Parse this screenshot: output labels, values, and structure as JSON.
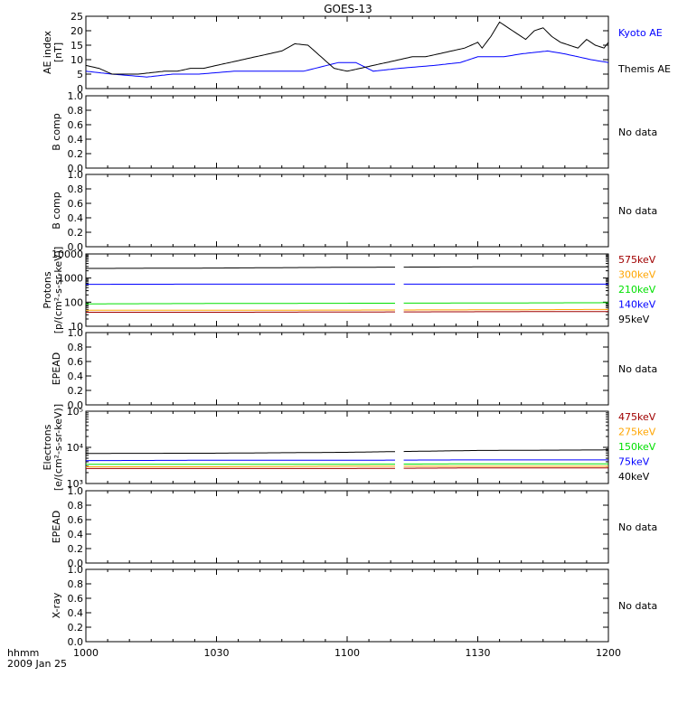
{
  "title": "GOES-13",
  "time_axis": {
    "unit_label": "hhmm",
    "date_label": "2009 Jan 25",
    "tick_labels": [
      "1000",
      "1030",
      "1100",
      "1130",
      "1200"
    ],
    "range_minutes": [
      0,
      120
    ]
  },
  "colors": {
    "black": "#000000",
    "blue": "#0000ff",
    "green": "#00e000",
    "orange": "#ffa500",
    "darkred": "#a00000",
    "red": "#ff0000"
  },
  "chart_data": [
    {
      "type": "line",
      "panel": "ae",
      "ylabel": [
        "AE index",
        "[nT]"
      ],
      "ylim": [
        0,
        25
      ],
      "yticks": [
        0,
        5,
        10,
        15,
        20,
        25
      ],
      "ytick_labels": [
        "0",
        "5",
        "10",
        "15",
        "20",
        "25"
      ],
      "series": [
        {
          "name": "Kyoto AE",
          "color": "#0000ff",
          "x": [
            0,
            3,
            6,
            10,
            14,
            20,
            26,
            34,
            42,
            50,
            58,
            62,
            66,
            72,
            80,
            86,
            90,
            96,
            100,
            106,
            110,
            116,
            120
          ],
          "y": [
            6,
            5.5,
            5,
            4.5,
            4,
            5,
            5,
            6,
            6,
            6,
            9,
            9,
            6,
            7,
            8,
            9,
            11,
            11,
            12,
            13,
            12,
            10,
            9
          ]
        },
        {
          "name": "Themis AE",
          "color": "#000000",
          "x": [
            0,
            3,
            6,
            9,
            12,
            15,
            18,
            21,
            24,
            27,
            30,
            33,
            36,
            39,
            42,
            45,
            48,
            51,
            54,
            57,
            60,
            63,
            66,
            69,
            72,
            75,
            78,
            81,
            84,
            87,
            90,
            91,
            93,
            95,
            97,
            99,
            101,
            103,
            105,
            107,
            109,
            111,
            113,
            115,
            117,
            119,
            120
          ],
          "y": [
            8,
            7,
            5,
            5,
            5,
            5.5,
            6,
            6,
            7,
            7,
            8,
            9,
            10,
            11,
            12,
            13,
            15.5,
            15,
            11,
            7,
            6,
            7,
            8,
            9,
            10,
            11,
            11,
            12,
            13,
            14,
            16,
            14,
            18,
            23,
            21,
            19,
            17,
            20,
            21,
            18,
            16,
            15,
            14,
            17,
            15,
            14,
            16
          ]
        }
      ]
    },
    {
      "type": "line",
      "panel": "b1",
      "ylabel": [
        "B comp"
      ],
      "ylim": [
        0,
        1
      ],
      "yticks": [
        0,
        0.2,
        0.4,
        0.6,
        0.8,
        1.0
      ],
      "ytick_labels": [
        "0.0",
        "0.2",
        "0.4",
        "0.6",
        "0.8",
        "1.0"
      ],
      "no_data": "No data",
      "series": []
    },
    {
      "type": "line",
      "panel": "b2",
      "ylabel": [
        "B comp"
      ],
      "ylim": [
        0,
        1
      ],
      "yticks": [
        0,
        0.2,
        0.4,
        0.6,
        0.8,
        1.0
      ],
      "ytick_labels": [
        "0.0",
        "0.2",
        "0.4",
        "0.6",
        "0.8",
        "1.0"
      ],
      "no_data": "No data",
      "series": []
    },
    {
      "type": "line",
      "panel": "protons",
      "log": true,
      "ylabel": [
        "Protons",
        "[p/(cm²-s-sr-keV)]"
      ],
      "ylim": [
        10,
        10000
      ],
      "yticks": [
        10,
        100,
        1000,
        10000
      ],
      "ytick_labels": [
        "10",
        "100",
        "1000",
        "10000"
      ],
      "gap": [
        71,
        73
      ],
      "series": [
        {
          "name": "575keV",
          "color": "#a00000",
          "x": [
            0,
            30,
            60,
            90,
            120
          ],
          "y": [
            38,
            38,
            39,
            40,
            41
          ]
        },
        {
          "name": "300keV",
          "color": "#ffa500",
          "x": [
            0,
            30,
            60,
            90,
            120
          ],
          "y": [
            46,
            46,
            47,
            48,
            50
          ]
        },
        {
          "name": "210keV",
          "color": "#00e000",
          "x": [
            0,
            30,
            60,
            90,
            120
          ],
          "y": [
            85,
            88,
            90,
            92,
            95
          ]
        },
        {
          "name": "140keV",
          "color": "#0000ff",
          "x": [
            0,
            30,
            60,
            90,
            120
          ],
          "y": [
            550,
            560,
            560,
            560,
            560
          ]
        },
        {
          "name": "95keV",
          "color": "#000000",
          "x": [
            0,
            30,
            60,
            90,
            120
          ],
          "y": [
            2500,
            2600,
            2800,
            2900,
            2900
          ]
        }
      ]
    },
    {
      "type": "line",
      "panel": "epead1",
      "ylabel": [
        "EPEAD"
      ],
      "ylim": [
        0,
        1
      ],
      "yticks": [
        0,
        0.2,
        0.4,
        0.6,
        0.8,
        1.0
      ],
      "ytick_labels": [
        "0.0",
        "0.2",
        "0.4",
        "0.6",
        "0.8",
        "1.0"
      ],
      "no_data": "No data",
      "series": []
    },
    {
      "type": "line",
      "panel": "electrons",
      "log": true,
      "ylabel": [
        "Electrons",
        "[e/(cm²-s-sr-keV)]"
      ],
      "ylim": [
        1000,
        100000
      ],
      "yticks": [
        1000,
        10000,
        100000
      ],
      "ytick_labels": [
        "10³",
        "10⁴",
        "10⁵"
      ],
      "gap": [
        71,
        73
      ],
      "series": [
        {
          "name": "475keV",
          "color": "#a00000",
          "x": [
            0,
            30,
            60,
            90,
            120
          ],
          "y": [
            2600,
            2600,
            2600,
            2700,
            2700
          ]
        },
        {
          "name": "275keV",
          "color": "#ffa500",
          "x": [
            0,
            30,
            60,
            90,
            120
          ],
          "y": [
            2900,
            2900,
            3000,
            3000,
            3000
          ]
        },
        {
          "name": "150keV",
          "color": "#00e000",
          "x": [
            0,
            30,
            60,
            90,
            120
          ],
          "y": [
            3400,
            3400,
            3400,
            3500,
            3500
          ]
        },
        {
          "name": "75keV",
          "color": "#0000ff",
          "x": [
            0,
            30,
            60,
            90,
            120
          ],
          "y": [
            4300,
            4400,
            4400,
            4500,
            4500
          ]
        },
        {
          "name": "40keV",
          "color": "#000000",
          "x": [
            0,
            30,
            60,
            90,
            120
          ],
          "y": [
            6800,
            6900,
            7300,
            8200,
            8500
          ]
        }
      ]
    },
    {
      "type": "line",
      "panel": "epead2",
      "ylabel": [
        "EPEAD"
      ],
      "ylim": [
        0,
        1
      ],
      "yticks": [
        0,
        0.2,
        0.4,
        0.6,
        0.8,
        1.0
      ],
      "ytick_labels": [
        "0.0",
        "0.2",
        "0.4",
        "0.6",
        "0.8",
        "1.0"
      ],
      "no_data": "No data",
      "series": []
    },
    {
      "type": "line",
      "panel": "xray",
      "ylabel": [
        "X-ray"
      ],
      "ylim": [
        0,
        1
      ],
      "yticks": [
        0,
        0.2,
        0.4,
        0.6,
        0.8,
        1.0
      ],
      "ytick_labels": [
        "0.0",
        "0.2",
        "0.4",
        "0.6",
        "0.8",
        "1.0"
      ],
      "no_data": "No data",
      "series": []
    }
  ]
}
